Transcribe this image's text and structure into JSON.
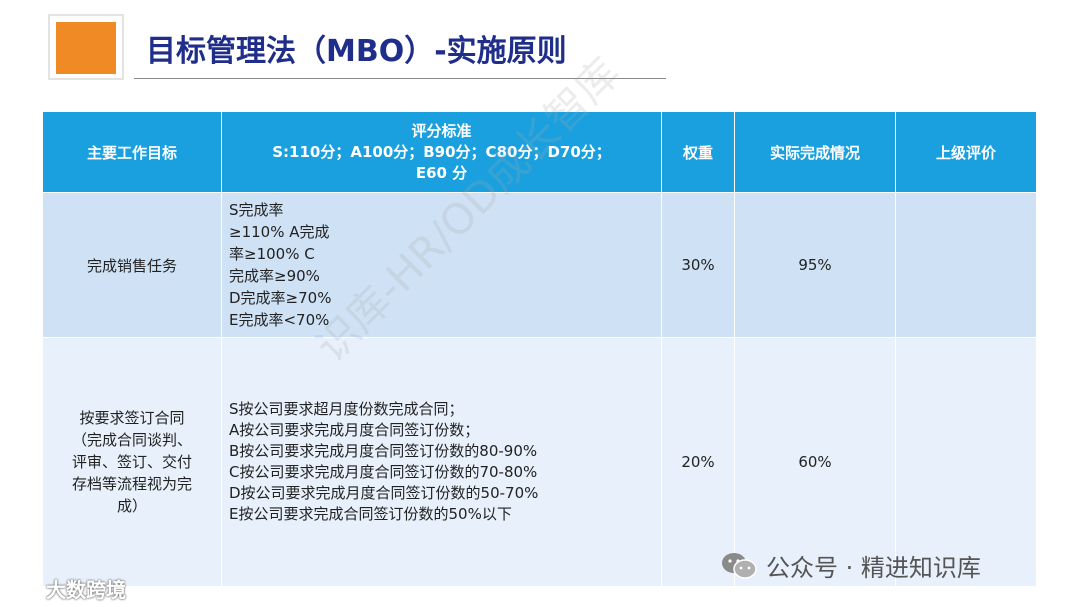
{
  "slide": {
    "title": "目标管理法（MBO）-实施原则"
  },
  "table": {
    "headers": {
      "goal": "主要工作目标",
      "criteria_lines": [
        "评分标准",
        "S:110分；A100分；B90分；C80分；D70分；",
        "E60 分"
      ],
      "weight": "权重",
      "actual": "实际完成情况",
      "review": "上级评价"
    },
    "rows": [
      {
        "goal_lines": [
          "完成销售任务"
        ],
        "criteria_lines": [
          "S完成率",
          "≥110%  A完成",
          "率≥100%  C",
          "完成率≥90%",
          "D完成率≥70%",
          "E完成率<70%"
        ],
        "weight": "30%",
        "actual": "95%",
        "review": ""
      },
      {
        "goal_lines": [
          "按要求签订合同",
          "（完成合同谈判、",
          "评审、签订、交付",
          "存档等流程视为完",
          "成）"
        ],
        "criteria_lines": [
          "S按公司要求超月度份数完成合同；",
          "A按公司要求完成月度合同签订份数；",
          "B按公司要求完成月度合同签订份数的80-90%",
          "C按公司要求完成月度合同签订份数的70-80%",
          "D按公司要求完成月度合同签订份数的50-70%",
          "E按公司要求完成合同签订份数的50%以下"
        ],
        "weight": "20%",
        "actual": "60%",
        "review": ""
      }
    ]
  },
  "watermark": "识库-HR/OD成长智库",
  "footer": {
    "left_brand": "大数跨境",
    "right_account": "公众号 · 精进知识库"
  },
  "colors": {
    "header_bg": "#1aa0de",
    "row1_bg": "#cfe2f5",
    "row2_bg": "#e7f0fb",
    "title": "#1f2e8a",
    "accent": "#f08a24"
  }
}
